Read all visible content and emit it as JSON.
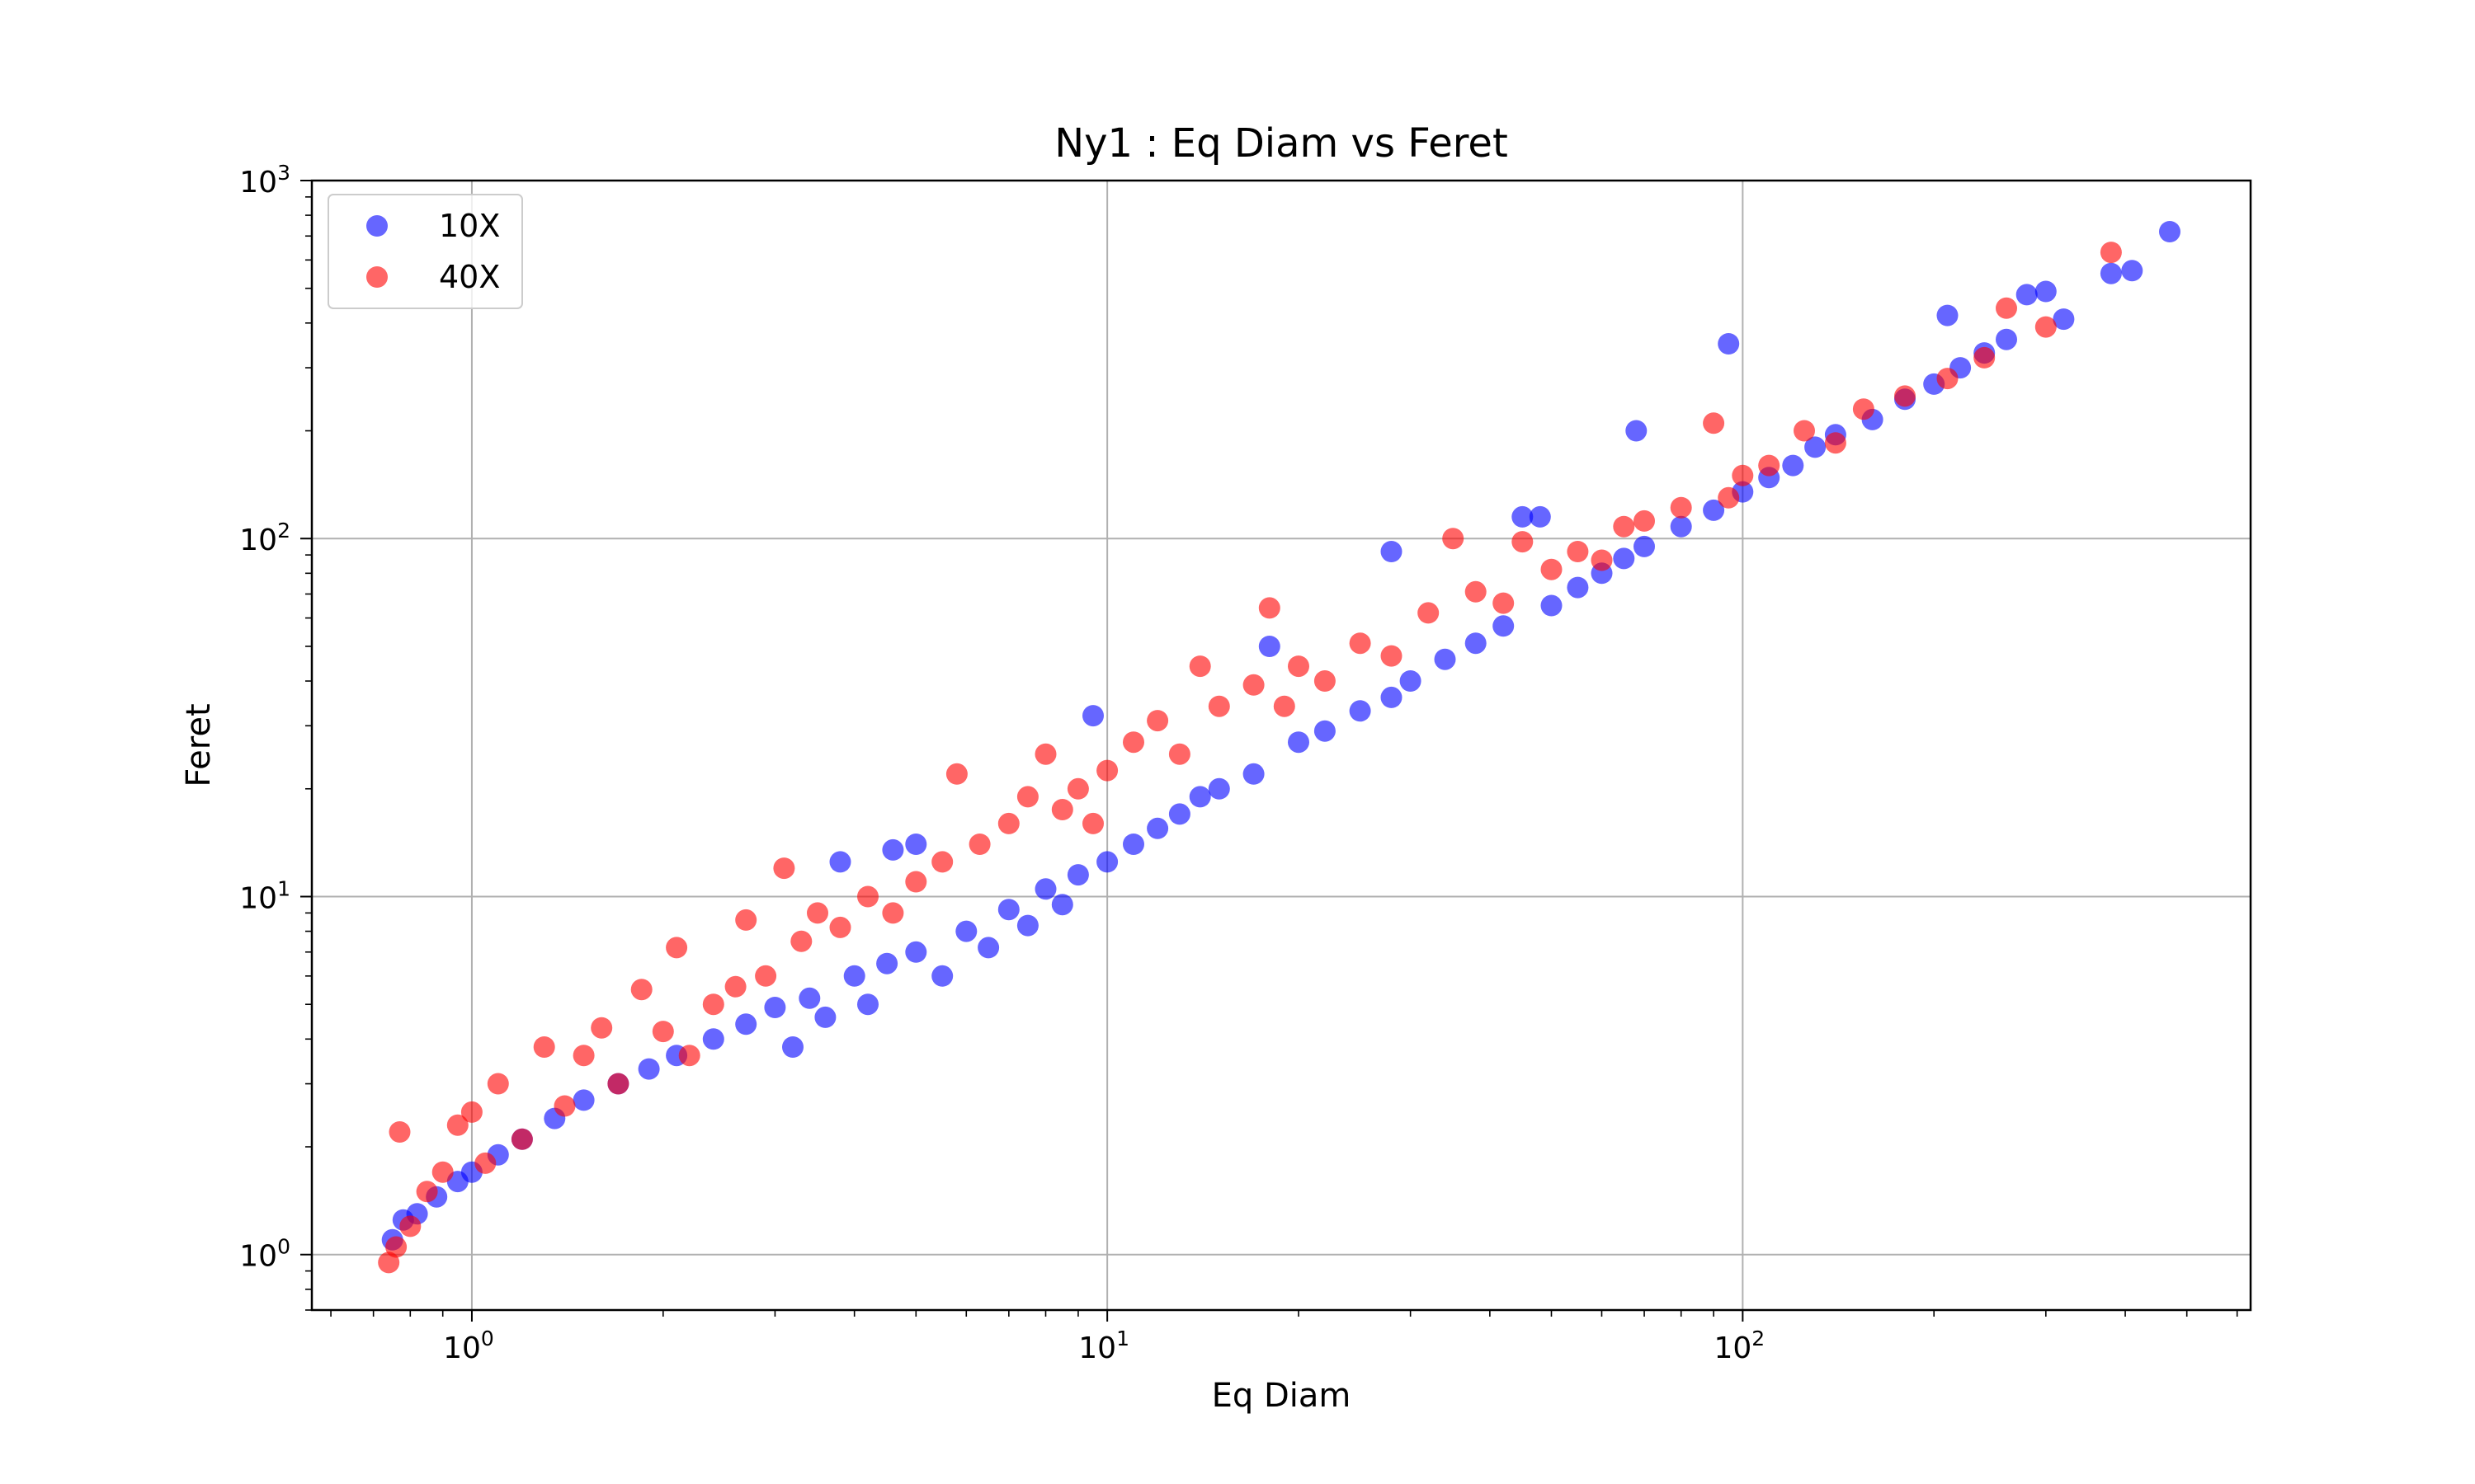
{
  "chart_data": {
    "type": "scatter",
    "title": "Ny1 : Eq Diam vs Feret",
    "xlabel": "Eq Diam",
    "ylabel": "Feret",
    "xscale": "log",
    "yscale": "log",
    "xlim": [
      0.56,
      630
    ],
    "ylim": [
      0.7,
      1000
    ],
    "grid": true,
    "legend_position": "top-left",
    "xticks": [
      {
        "base": "10",
        "exp": "0",
        "value": 1
      },
      {
        "base": "10",
        "exp": "1",
        "value": 10
      },
      {
        "base": "10",
        "exp": "2",
        "value": 100
      }
    ],
    "yticks": [
      {
        "base": "10",
        "exp": "0",
        "value": 1
      },
      {
        "base": "10",
        "exp": "1",
        "value": 10
      },
      {
        "base": "10",
        "exp": "2",
        "value": 100
      },
      {
        "base": "10",
        "exp": "3",
        "value": 1000
      }
    ],
    "series": [
      {
        "name": "10X",
        "color": "#0000ff",
        "points": [
          [
            0.75,
            1.1
          ],
          [
            0.78,
            1.25
          ],
          [
            0.82,
            1.3
          ],
          [
            0.88,
            1.45
          ],
          [
            0.95,
            1.6
          ],
          [
            1.0,
            1.7
          ],
          [
            1.1,
            1.9
          ],
          [
            1.2,
            2.1
          ],
          [
            1.35,
            2.4
          ],
          [
            1.5,
            2.7
          ],
          [
            1.7,
            3.0
          ],
          [
            1.9,
            3.3
          ],
          [
            2.1,
            3.6
          ],
          [
            2.4,
            4.0
          ],
          [
            2.7,
            4.4
          ],
          [
            3.0,
            4.9
          ],
          [
            3.2,
            3.8
          ],
          [
            3.4,
            5.2
          ],
          [
            3.6,
            4.6
          ],
          [
            3.8,
            12.5
          ],
          [
            4.0,
            6.0
          ],
          [
            4.2,
            5.0
          ],
          [
            4.5,
            6.5
          ],
          [
            4.6,
            13.5
          ],
          [
            5.0,
            14.0
          ],
          [
            5.0,
            7.0
          ],
          [
            5.5,
            6.0
          ],
          [
            6.0,
            8.0
          ],
          [
            6.5,
            7.2
          ],
          [
            7.0,
            9.2
          ],
          [
            7.5,
            8.3
          ],
          [
            8.0,
            10.5
          ],
          [
            8.5,
            9.5
          ],
          [
            9.0,
            11.5
          ],
          [
            9.5,
            32.0
          ],
          [
            10.0,
            12.5
          ],
          [
            11.0,
            14.0
          ],
          [
            12.0,
            15.5
          ],
          [
            13.0,
            17.0
          ],
          [
            14.0,
            19.0
          ],
          [
            15.0,
            20.0
          ],
          [
            17.0,
            22.0
          ],
          [
            18.0,
            50.0
          ],
          [
            20.0,
            27.0
          ],
          [
            22.0,
            29.0
          ],
          [
            25.0,
            33.0
          ],
          [
            28.0,
            36.0
          ],
          [
            28.0,
            92.0
          ],
          [
            30.0,
            40.0
          ],
          [
            34.0,
            46.0
          ],
          [
            38.0,
            51.0
          ],
          [
            42.0,
            57.0
          ],
          [
            45.0,
            115.0
          ],
          [
            48.0,
            115.0
          ],
          [
            50.0,
            65.0
          ],
          [
            55.0,
            73.0
          ],
          [
            60.0,
            80.0
          ],
          [
            65.0,
            88.0
          ],
          [
            68.0,
            200.0
          ],
          [
            70.0,
            95.0
          ],
          [
            80.0,
            108.0
          ],
          [
            90.0,
            120.0
          ],
          [
            95.0,
            350.0
          ],
          [
            100.0,
            135.0
          ],
          [
            110.0,
            148.0
          ],
          [
            120.0,
            160.0
          ],
          [
            130.0,
            180.0
          ],
          [
            140.0,
            195.0
          ],
          [
            160.0,
            215.0
          ],
          [
            180.0,
            245.0
          ],
          [
            200.0,
            270.0
          ],
          [
            210.0,
            420.0
          ],
          [
            220.0,
            300.0
          ],
          [
            240.0,
            330.0
          ],
          [
            260.0,
            360.0
          ],
          [
            280.0,
            480.0
          ],
          [
            300.0,
            490.0
          ],
          [
            320.0,
            410.0
          ],
          [
            380.0,
            550.0
          ],
          [
            410.0,
            560.0
          ],
          [
            470.0,
            720.0
          ]
        ]
      },
      {
        "name": "40X",
        "color": "#ff0000",
        "points": [
          [
            0.74,
            0.95
          ],
          [
            0.76,
            1.05
          ],
          [
            0.77,
            2.2
          ],
          [
            0.8,
            1.2
          ],
          [
            0.85,
            1.5
          ],
          [
            0.9,
            1.7
          ],
          [
            0.95,
            2.3
          ],
          [
            1.0,
            2.5
          ],
          [
            1.05,
            1.8
          ],
          [
            1.1,
            3.0
          ],
          [
            1.2,
            2.1
          ],
          [
            1.3,
            3.8
          ],
          [
            1.4,
            2.6
          ],
          [
            1.5,
            3.6
          ],
          [
            1.6,
            4.3
          ],
          [
            1.7,
            3.0
          ],
          [
            1.85,
            5.5
          ],
          [
            2.0,
            4.2
          ],
          [
            2.1,
            7.2
          ],
          [
            2.2,
            3.6
          ],
          [
            2.4,
            5.0
          ],
          [
            2.6,
            5.6
          ],
          [
            2.7,
            8.6
          ],
          [
            2.9,
            6.0
          ],
          [
            3.1,
            12.0
          ],
          [
            3.3,
            7.5
          ],
          [
            3.5,
            9.0
          ],
          [
            3.8,
            8.2
          ],
          [
            4.2,
            10.0
          ],
          [
            4.6,
            9.0
          ],
          [
            5.0,
            11.0
          ],
          [
            5.5,
            12.5
          ],
          [
            5.8,
            22.0
          ],
          [
            6.3,
            14.0
          ],
          [
            7.0,
            16.0
          ],
          [
            7.5,
            19.0
          ],
          [
            8.0,
            25.0
          ],
          [
            8.5,
            17.5
          ],
          [
            9.0,
            20.0
          ],
          [
            9.5,
            16.0
          ],
          [
            10.0,
            22.5
          ],
          [
            11.0,
            27.0
          ],
          [
            12.0,
            31.0
          ],
          [
            13.0,
            25.0
          ],
          [
            14.0,
            44.0
          ],
          [
            15.0,
            34.0
          ],
          [
            17.0,
            39.0
          ],
          [
            18.0,
            64.0
          ],
          [
            19.0,
            34.0
          ],
          [
            20.0,
            44.0
          ],
          [
            22.0,
            40.0
          ],
          [
            25.0,
            51.0
          ],
          [
            28.0,
            47.0
          ],
          [
            32.0,
            62.0
          ],
          [
            35.0,
            100.0
          ],
          [
            38.0,
            71.0
          ],
          [
            42.0,
            66.0
          ],
          [
            45.0,
            98.0
          ],
          [
            50.0,
            82.0
          ],
          [
            55.0,
            92.0
          ],
          [
            60.0,
            87.0
          ],
          [
            65.0,
            108.0
          ],
          [
            70.0,
            112.0
          ],
          [
            80.0,
            122.0
          ],
          [
            90.0,
            210.0
          ],
          [
            95.0,
            130.0
          ],
          [
            100.0,
            150.0
          ],
          [
            110.0,
            160.0
          ],
          [
            125.0,
            200.0
          ],
          [
            140.0,
            185.0
          ],
          [
            155.0,
            230.0
          ],
          [
            180.0,
            250.0
          ],
          [
            210.0,
            280.0
          ],
          [
            240.0,
            320.0
          ],
          [
            260.0,
            440.0
          ],
          [
            300.0,
            390.0
          ],
          [
            380.0,
            630.0
          ]
        ]
      }
    ]
  }
}
